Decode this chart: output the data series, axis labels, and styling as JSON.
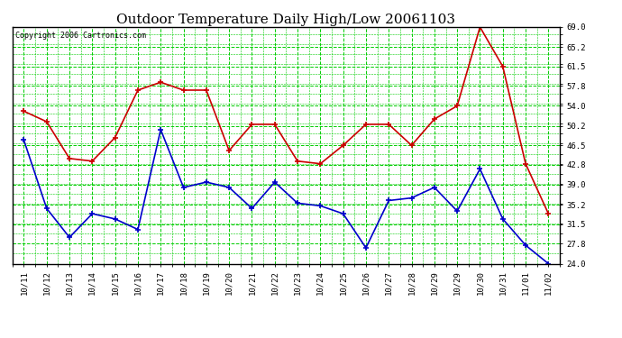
{
  "title": "Outdoor Temperature Daily High/Low 20061103",
  "copyright": "Copyright 2006 Cartronics.com",
  "x_labels": [
    "10/11",
    "10/12",
    "10/13",
    "10/14",
    "10/15",
    "10/16",
    "10/17",
    "10/18",
    "10/19",
    "10/20",
    "10/21",
    "10/22",
    "10/23",
    "10/24",
    "10/25",
    "10/26",
    "10/27",
    "10/28",
    "10/29",
    "10/29",
    "10/30",
    "10/31",
    "11/01",
    "11/02"
  ],
  "high": [
    53.0,
    51.0,
    44.0,
    43.5,
    48.0,
    57.0,
    58.5,
    57.0,
    57.0,
    45.5,
    50.5,
    50.5,
    43.5,
    43.0,
    46.5,
    50.5,
    50.5,
    46.5,
    51.5,
    54.0,
    69.0,
    61.5,
    43.0,
    33.5
  ],
  "low": [
    47.5,
    34.5,
    29.0,
    33.5,
    32.5,
    30.5,
    49.5,
    38.5,
    39.5,
    38.5,
    34.5,
    39.5,
    35.5,
    35.0,
    33.5,
    27.0,
    36.0,
    36.5,
    38.5,
    34.0,
    42.0,
    32.5,
    27.5,
    24.0
  ],
  "high_color": "#cc0000",
  "low_color": "#0000cc",
  "grid_color": "#00cc00",
  "bg_color": "#ffffff",
  "y_ticks": [
    24.0,
    27.8,
    31.5,
    35.2,
    39.0,
    42.8,
    46.5,
    50.2,
    54.0,
    57.8,
    61.5,
    65.2,
    69.0
  ],
  "y_min": 24.0,
  "y_max": 69.0,
  "title_fontsize": 11,
  "copyright_fontsize": 6,
  "tick_fontsize": 6.5
}
